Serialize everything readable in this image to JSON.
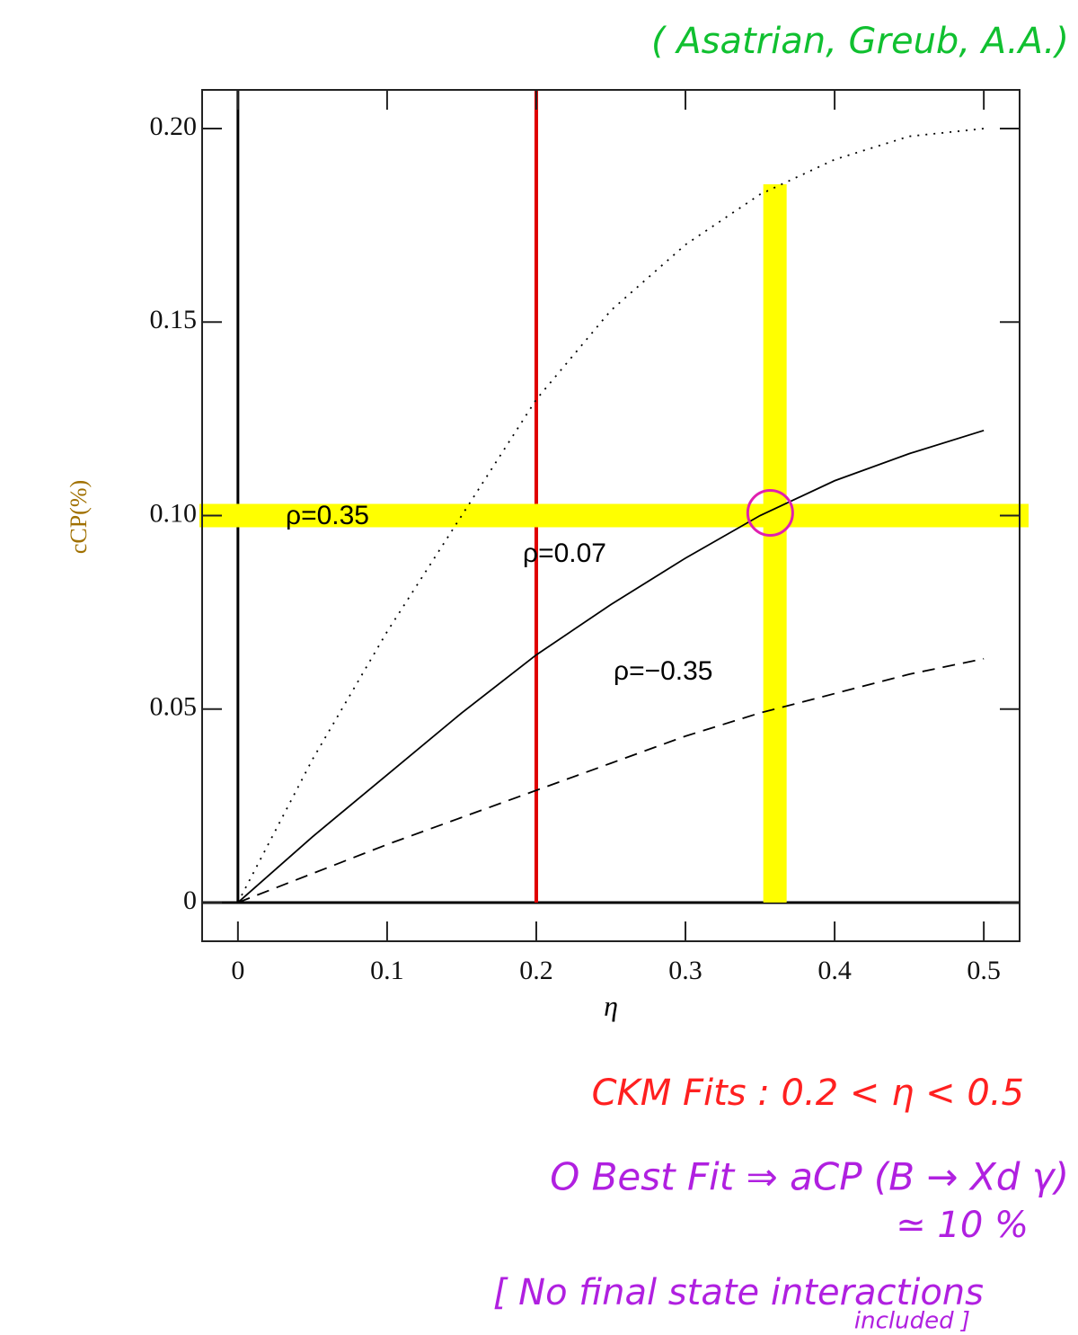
{
  "chart_data": {
    "type": "line",
    "x_label": "η",
    "y_label": "cCP(%)",
    "x": [
      0,
      0.05,
      0.1,
      0.15,
      0.2,
      0.25,
      0.3,
      0.35,
      0.4,
      0.45,
      0.5
    ],
    "series": [
      {
        "name": "ρ=0.35",
        "color": "#000000",
        "dash": "dotted",
        "values": [
          0,
          0.037,
          0.07,
          0.1,
          0.13,
          0.153,
          0.17,
          0.183,
          0.192,
          0.198,
          0.2
        ]
      },
      {
        "name": "ρ=0.07",
        "color": "#000000",
        "dash": "solid",
        "values": [
          0,
          0.017,
          0.033,
          0.049,
          0.064,
          0.077,
          0.089,
          0.1,
          0.109,
          0.116,
          0.122
        ]
      },
      {
        "name": "ρ=−0.35",
        "color": "#000000",
        "dash": "dashed",
        "values": [
          0,
          0.0075,
          0.015,
          0.022,
          0.029,
          0.036,
          0.043,
          0.049,
          0.054,
          0.059,
          0.063
        ]
      }
    ],
    "xlim": [
      -0.024,
      0.524
    ],
    "ylim": [
      -0.01,
      0.21
    ],
    "xticks": [
      0,
      0.1,
      0.2,
      0.3,
      0.4,
      0.5
    ],
    "yticks": [
      0,
      {
        "value": 0.05,
        "label": "0.05"
      },
      {
        "value": 0.1,
        "label": "0.10"
      },
      {
        "value": 0.15,
        "label": "0.15"
      },
      {
        "value": 0.2,
        "label": "0.20"
      }
    ],
    "reference_lines": [
      {
        "axis": "x",
        "value": 0,
        "color": "#000000"
      },
      {
        "axis": "y",
        "value": 0,
        "color": "#000000"
      },
      {
        "axis": "x",
        "value": 0.2,
        "color": "#e00000"
      },
      {
        "axis": "x",
        "value": 0.36,
        "color": "#ffff00"
      },
      {
        "axis": "y",
        "value": 0.1,
        "color": "#ffff00"
      }
    ],
    "best_fit": {
      "x": 0.355,
      "y": 0.1,
      "color": "#e020b0"
    },
    "annotations": [
      {
        "text": "( Asatrian, Greub, A.A.)",
        "color": "#10c030"
      },
      {
        "text": "CKM Fits : 0.2 < η < 0.5",
        "color": "#ff2020"
      },
      {
        "text": "O   Best Fit ⇒ aCP (B → Xd γ)",
        "color": "#b020e0"
      },
      {
        "text": "≃ 10 %",
        "color": "#b020e0"
      },
      {
        "text": "[ No final state interactions",
        "color": "#b020e0"
      },
      {
        "text": "included ]",
        "color": "#b020e0"
      }
    ]
  }
}
